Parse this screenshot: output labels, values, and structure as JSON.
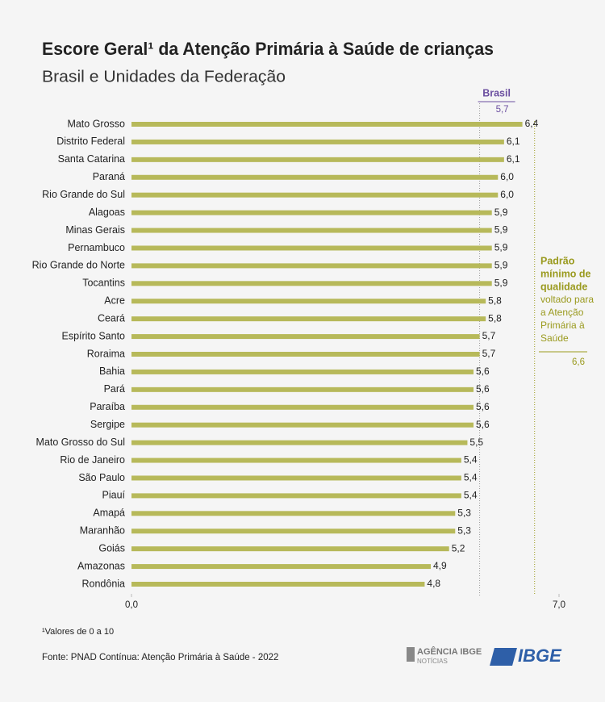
{
  "chart_data": {
    "type": "bar",
    "orientation": "horizontal",
    "title": "Escore Geral¹ da Atenção Primária à Saúde de crianças",
    "subtitle": "Brasil e Unidades da Federação",
    "categories": [
      "Mato Grosso",
      "Distrito Federal",
      "Santa Catarina",
      "Paraná",
      "Rio Grande do Sul",
      "Alagoas",
      "Minas Gerais",
      "Pernambuco",
      "Rio Grande do Norte",
      "Tocantins",
      "Acre",
      "Ceará",
      "Espírito Santo",
      "Roraima",
      "Bahia",
      "Pará",
      "Paraíba",
      "Sergipe",
      "Mato Grosso do Sul",
      "Rio de Janeiro",
      "São Paulo",
      "Piauí",
      "Amapá",
      "Maranhão",
      "Goiás",
      "Amazonas",
      "Rondônia"
    ],
    "values": [
      6.4,
      6.1,
      6.1,
      6.0,
      6.0,
      5.9,
      5.9,
      5.9,
      5.9,
      5.9,
      5.8,
      5.8,
      5.7,
      5.7,
      5.6,
      5.6,
      5.6,
      5.6,
      5.5,
      5.4,
      5.4,
      5.4,
      5.3,
      5.3,
      5.2,
      4.9,
      4.8
    ],
    "value_labels": [
      "6,4",
      "6,1",
      "6,1",
      "6,0",
      "6,0",
      "5,9",
      "5,9",
      "5,9",
      "5,9",
      "5,9",
      "5,8",
      "5,8",
      "5,7",
      "5,7",
      "5,6",
      "5,6",
      "5,6",
      "5,6",
      "5,5",
      "5,4",
      "5,4",
      "5,4",
      "5,3",
      "5,3",
      "5,2",
      "4,9",
      "4,8"
    ],
    "color": "#b7b95a",
    "xlim": [
      0,
      7
    ],
    "xticks": [
      {
        "value": 0,
        "label": "0,0"
      },
      {
        "value": 7,
        "label": "7,0"
      }
    ],
    "reference_lines": [
      {
        "name": "Brasil",
        "value": 5.7,
        "value_label": "5,7",
        "color": "#6b4fa0"
      },
      {
        "name_bold": [
          "Padrão",
          "mínimo de",
          "qualidade"
        ],
        "name": [
          "voltado para",
          "a Atenção",
          "Primária à",
          "Saúde"
        ],
        "value": 6.6,
        "value_label": "6,6",
        "color": "#9a9a1e"
      }
    ],
    "footnote": "¹Valores de 0 a 10",
    "source": "Fonte: PNAD Contínua: Atenção Primária à Saúde - 2022",
    "logos": [
      "AGÊNCIA IBGE",
      "NOTÍCIAS",
      "IBGE"
    ]
  }
}
